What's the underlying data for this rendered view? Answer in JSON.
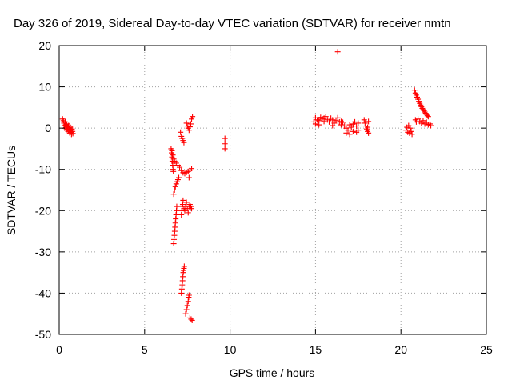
{
  "chart_data": {
    "type": "scatter",
    "title": "Day 326 of 2019, Sidereal Day-to-day VTEC variation (SDTVAR) for receiver nmtn",
    "xlabel": "GPS time / hours",
    "ylabel": "SDTVAR / TECUs",
    "xlim": [
      0,
      25
    ],
    "ylim": [
      -50,
      20
    ],
    "xticks": [
      0,
      5,
      10,
      15,
      20,
      25
    ],
    "yticks": [
      -50,
      -40,
      -30,
      -20,
      -10,
      0,
      10,
      20
    ],
    "xtick_labels": [
      "0",
      "5",
      "10",
      "15",
      "20",
      "25"
    ],
    "ytick_labels": [
      "-50",
      "-40",
      "-30",
      "-20",
      "-10",
      "0",
      "10",
      "20"
    ],
    "grid": true,
    "marker": "+",
    "color": "#ff0000",
    "points": [
      [
        0.2,
        2.2
      ],
      [
        0.25,
        1.8
      ],
      [
        0.28,
        1.2
      ],
      [
        0.3,
        0.6
      ],
      [
        0.32,
        0.0
      ],
      [
        0.35,
        1.5
      ],
      [
        0.38,
        0.8
      ],
      [
        0.4,
        0.2
      ],
      [
        0.42,
        -0.4
      ],
      [
        0.45,
        1.0
      ],
      [
        0.48,
        0.4
      ],
      [
        0.5,
        -0.2
      ],
      [
        0.52,
        -0.8
      ],
      [
        0.55,
        0.6
      ],
      [
        0.58,
        0.0
      ],
      [
        0.6,
        -0.6
      ],
      [
        0.62,
        -1.2
      ],
      [
        0.65,
        0.2
      ],
      [
        0.68,
        -0.4
      ],
      [
        0.7,
        -1.0
      ],
      [
        0.72,
        -1.5
      ],
      [
        0.75,
        -0.2
      ],
      [
        0.78,
        -0.8
      ],
      [
        0.8,
        -1.3
      ],
      [
        6.55,
        -5.0
      ],
      [
        6.58,
        -6.0
      ],
      [
        6.6,
        -7.0
      ],
      [
        6.62,
        -8.0
      ],
      [
        6.64,
        -9.0
      ],
      [
        6.66,
        -10.0
      ],
      [
        6.68,
        -10.5
      ],
      [
        6.6,
        -5.5
      ],
      [
        6.65,
        -6.5
      ],
      [
        6.7,
        -7.5
      ],
      [
        6.72,
        -8.5
      ],
      [
        6.75,
        -8.0
      ],
      [
        6.85,
        -8.5
      ],
      [
        6.95,
        -9.0
      ],
      [
        7.05,
        -9.5
      ],
      [
        7.15,
        -10.3
      ],
      [
        7.25,
        -10.8
      ],
      [
        7.35,
        -11.0
      ],
      [
        7.45,
        -10.7
      ],
      [
        7.55,
        -10.5
      ],
      [
        7.65,
        -10.2
      ],
      [
        7.75,
        -9.8
      ],
      [
        6.7,
        -16.0
      ],
      [
        6.75,
        -15.0
      ],
      [
        6.8,
        -14.2
      ],
      [
        6.85,
        -13.5
      ],
      [
        6.9,
        -13.0
      ],
      [
        6.95,
        -12.5
      ],
      [
        7.0,
        -12.0
      ],
      [
        6.7,
        -28.0
      ],
      [
        6.72,
        -27.0
      ],
      [
        6.74,
        -26.0
      ],
      [
        6.76,
        -25.0
      ],
      [
        6.78,
        -24.0
      ],
      [
        6.8,
        -23.0
      ],
      [
        6.82,
        -22.0
      ],
      [
        6.84,
        -21.0
      ],
      [
        6.86,
        -20.0
      ],
      [
        6.88,
        -19.0
      ],
      [
        7.15,
        -21.0
      ],
      [
        7.18,
        -20.0
      ],
      [
        7.2,
        -19.0
      ],
      [
        7.23,
        -18.5
      ],
      [
        7.25,
        -17.5
      ],
      [
        7.3,
        -19.5
      ],
      [
        7.35,
        -20.0
      ],
      [
        7.4,
        -19.0
      ],
      [
        7.45,
        -18.0
      ],
      [
        7.5,
        -19.5
      ],
      [
        7.55,
        -20.5
      ],
      [
        7.6,
        -19.0
      ],
      [
        7.65,
        -18.5
      ],
      [
        7.7,
        -19.0
      ],
      [
        7.75,
        -19.5
      ],
      [
        7.15,
        -40.0
      ],
      [
        7.18,
        -39.0
      ],
      [
        7.2,
        -38.0
      ],
      [
        7.22,
        -37.0
      ],
      [
        7.24,
        -36.0
      ],
      [
        7.26,
        -35.0
      ],
      [
        7.28,
        -34.5
      ],
      [
        7.3,
        -34.0
      ],
      [
        7.32,
        -33.5
      ],
      [
        7.4,
        -45.0
      ],
      [
        7.45,
        -44.0
      ],
      [
        7.5,
        -43.0
      ],
      [
        7.55,
        -42.0
      ],
      [
        7.58,
        -41.0
      ],
      [
        7.6,
        -40.5
      ],
      [
        7.65,
        -46.0
      ],
      [
        7.72,
        -46.3
      ],
      [
        7.78,
        -46.6
      ],
      [
        7.1,
        -1.0
      ],
      [
        7.15,
        -2.0
      ],
      [
        7.2,
        -2.5
      ],
      [
        7.25,
        -3.0
      ],
      [
        7.3,
        -3.5
      ],
      [
        7.45,
        1.2
      ],
      [
        7.5,
        0.5
      ],
      [
        7.55,
        0.0
      ],
      [
        7.6,
        -0.5
      ],
      [
        7.65,
        0.3
      ],
      [
        7.7,
        1.0
      ],
      [
        7.75,
        2.2
      ],
      [
        7.8,
        2.8
      ],
      [
        7.6,
        -12.0
      ],
      [
        9.7,
        -2.5
      ],
      [
        9.7,
        -3.8
      ],
      [
        9.7,
        -5.0
      ],
      [
        14.9,
        1.5
      ],
      [
        15.0,
        2.5
      ],
      [
        15.1,
        2.0
      ],
      [
        15.2,
        1.8
      ],
      [
        15.3,
        2.6
      ],
      [
        15.4,
        2.2
      ],
      [
        15.5,
        1.6
      ],
      [
        15.6,
        2.8
      ],
      [
        15.7,
        2.0
      ],
      [
        15.8,
        1.5
      ],
      [
        15.9,
        2.4
      ],
      [
        16.0,
        2.0
      ],
      [
        16.1,
        1.2
      ],
      [
        16.2,
        1.8
      ],
      [
        16.3,
        2.5
      ],
      [
        16.4,
        1.5
      ],
      [
        16.5,
        0.8
      ],
      [
        16.6,
        1.4
      ],
      [
        16.7,
        0.5
      ],
      [
        16.8,
        0.0
      ],
      [
        16.9,
        -0.5
      ],
      [
        17.0,
        0.8
      ],
      [
        17.1,
        0.2
      ],
      [
        17.2,
        1.0
      ],
      [
        17.3,
        1.5
      ],
      [
        17.4,
        0.5
      ],
      [
        17.5,
        1.2
      ],
      [
        15.0,
        1.0
      ],
      [
        15.2,
        0.8
      ],
      [
        15.5,
        2.4
      ],
      [
        16.0,
        0.6
      ],
      [
        16.5,
        1.6
      ],
      [
        16.8,
        -1.2
      ],
      [
        17.0,
        -1.5
      ],
      [
        17.2,
        -0.8
      ],
      [
        17.4,
        -1.0
      ],
      [
        17.5,
        -0.5
      ],
      [
        16.3,
        18.5
      ],
      [
        17.85,
        2.0
      ],
      [
        17.9,
        1.2
      ],
      [
        17.95,
        0.5
      ],
      [
        18.0,
        -0.2
      ],
      [
        18.05,
        -0.8
      ],
      [
        18.1,
        -1.2
      ],
      [
        18.1,
        1.6
      ],
      [
        18.05,
        0.2
      ],
      [
        20.3,
        -0.5
      ],
      [
        20.35,
        0.2
      ],
      [
        20.4,
        -1.0
      ],
      [
        20.45,
        0.6
      ],
      [
        20.5,
        -1.2
      ],
      [
        20.55,
        0.0
      ],
      [
        20.6,
        -0.8
      ],
      [
        20.65,
        -1.5
      ],
      [
        20.8,
        9.2
      ],
      [
        20.85,
        8.5
      ],
      [
        20.9,
        8.0
      ],
      [
        20.95,
        7.5
      ],
      [
        21.0,
        7.0
      ],
      [
        21.05,
        6.5
      ],
      [
        21.1,
        6.0
      ],
      [
        21.15,
        5.6
      ],
      [
        21.2,
        5.2
      ],
      [
        21.25,
        4.8
      ],
      [
        21.3,
        4.5
      ],
      [
        21.35,
        4.2
      ],
      [
        21.4,
        3.9
      ],
      [
        21.45,
        3.6
      ],
      [
        21.5,
        3.3
      ],
      [
        21.55,
        3.0
      ],
      [
        21.6,
        2.8
      ],
      [
        20.85,
        2.0
      ],
      [
        20.9,
        1.5
      ],
      [
        21.0,
        2.2
      ],
      [
        21.1,
        1.6
      ],
      [
        21.2,
        1.2
      ],
      [
        21.3,
        1.8
      ],
      [
        21.4,
        1.0
      ],
      [
        21.5,
        1.4
      ],
      [
        21.6,
        0.8
      ],
      [
        21.7,
        1.0
      ],
      [
        21.75,
        0.6
      ]
    ]
  }
}
